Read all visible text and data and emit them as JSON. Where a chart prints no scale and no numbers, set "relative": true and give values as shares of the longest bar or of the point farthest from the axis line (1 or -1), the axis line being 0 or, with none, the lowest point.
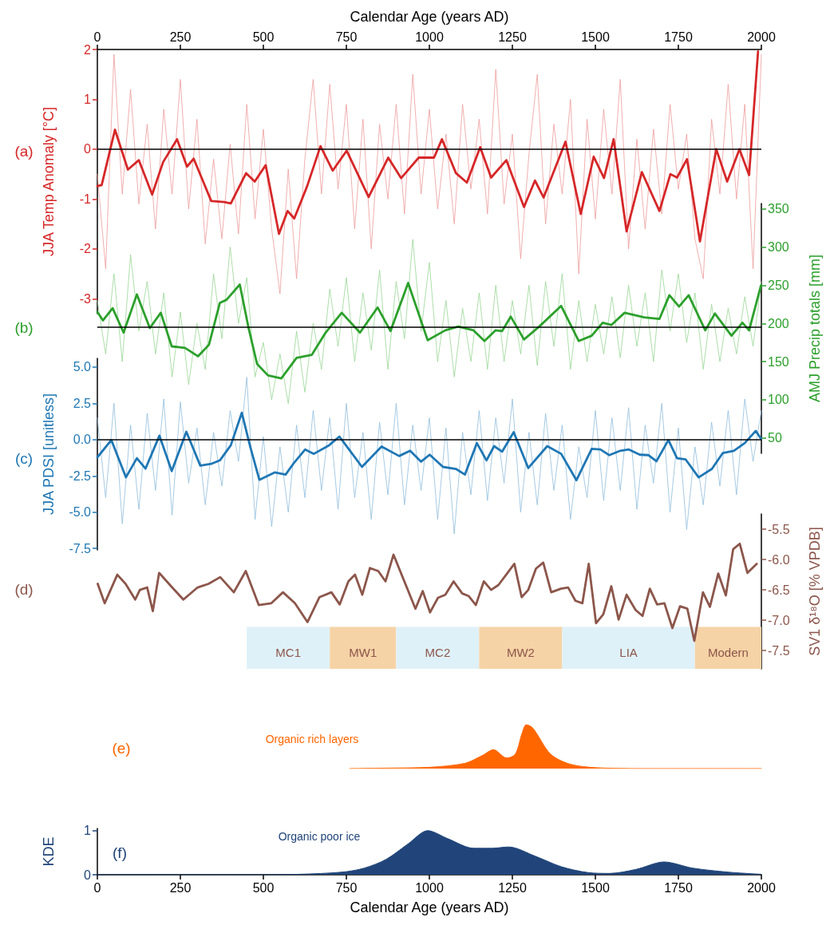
{
  "chart_data": [
    {
      "type": "line",
      "xlabel": "Calendar Age (years AD)",
      "xlim": [
        0,
        2000
      ],
      "xticks": [
        0,
        250,
        500,
        750,
        1000,
        1250,
        1500,
        1750,
        2000
      ],
      "ylabel": "JJA Temp Anomaly [°C]",
      "ylim": [
        -3.3,
        2
      ],
      "yticks": [
        2,
        1,
        0,
        -1,
        -2,
        -3
      ],
      "annotations": [
        "(a)"
      ],
      "ref_lines": [
        {
          "axis": "y",
          "value": 0,
          "color": "#000000"
        }
      ],
      "series": [
        {
          "color": "#ee9a9b",
          "x": [
            0,
            25,
            50,
            75,
            100,
            125,
            150,
            175,
            200,
            225,
            250,
            275,
            300,
            325,
            350,
            375,
            400,
            425,
            450,
            475,
            500,
            525,
            550,
            575,
            600,
            625,
            650,
            675,
            700,
            725,
            750,
            775,
            800,
            825,
            850,
            875,
            900,
            925,
            950,
            975,
            1000,
            1025,
            1050,
            1075,
            1100,
            1125,
            1150,
            1175,
            1200,
            1225,
            1250,
            1275,
            1300,
            1325,
            1350,
            1375,
            1400,
            1425,
            1450,
            1475,
            1500,
            1525,
            1550,
            1575,
            1600,
            1625,
            1650,
            1675,
            1700,
            1725,
            1750,
            1775,
            1800,
            1825,
            1850,
            1875,
            1900,
            1925,
            1950,
            1975,
            2000
          ],
          "values": [
            -0.5,
            -2.4,
            1.9,
            -0.9,
            1.2,
            -1.1,
            0.5,
            -1.6,
            0.8,
            -0.9,
            1.4,
            -1.2,
            0.6,
            -1.9,
            -0.2,
            -1.8,
            0.1,
            -1.7,
            0.9,
            -1.4,
            0.4,
            -1.6,
            -2.9,
            -0.4,
            -2.6,
            -0.2,
            1.4,
            -0.9,
            1.3,
            -0.8,
            0.9,
            -1.6,
            0.6,
            -2.0,
            0.5,
            -1.0,
            0.9,
            -1.3,
            1.5,
            -0.9,
            0.8,
            -1.2,
            0.3,
            -1.5,
            0.9,
            -0.8,
            0.6,
            -1.3,
            1.6,
            -1.1,
            0.3,
            -2.2,
            -0.1,
            1.5,
            -1.5,
            0.5,
            -0.9,
            1.0,
            -2.5,
            0.6,
            -1.4,
            0.8,
            -0.9,
            1.4,
            -2.0,
            0.2,
            -1.6,
            0.4,
            -1.3,
            0.9,
            -0.8,
            0.3,
            -1.8,
            -2.6,
            0.6,
            -0.9,
            1.3,
            -1.0,
            0.9,
            -2.4,
            1.9
          ]
        },
        {
          "color": "#d62728",
          "x": [
            0,
            13,
            53,
            92,
            125,
            165,
            198,
            240,
            270,
            290,
            343,
            382,
            402,
            448,
            474,
            507,
            547,
            573,
            593,
            632,
            672,
            709,
            751,
            817,
            876,
            915,
            968,
            1014,
            1038,
            1080,
            1113,
            1153,
            1186,
            1232,
            1285,
            1318,
            1344,
            1410,
            1456,
            1495,
            1526,
            1555,
            1594,
            1640,
            1693,
            1726,
            1746,
            1776,
            1815,
            1864,
            1897,
            1934,
            1963,
            1990
          ],
          "values": [
            -0.74,
            -0.72,
            0.39,
            -0.41,
            -0.22,
            -0.91,
            -0.26,
            0.2,
            -0.35,
            -0.19,
            -1.04,
            -1.06,
            -1.09,
            -0.48,
            -0.65,
            -0.32,
            -1.7,
            -1.24,
            -1.39,
            -0.74,
            0.06,
            -0.43,
            -0.03,
            -0.96,
            -0.17,
            -0.58,
            -0.17,
            -0.17,
            0.2,
            -0.48,
            -0.67,
            0.04,
            -0.57,
            -0.22,
            -1.16,
            -0.63,
            -0.97,
            0.15,
            -1.3,
            -0.15,
            -0.58,
            0.2,
            -1.65,
            -0.46,
            -1.24,
            -0.5,
            -0.57,
            -0.2,
            -1.85,
            0,
            -0.65,
            0,
            -0.52,
            1.96
          ]
        }
      ]
    },
    {
      "type": "line",
      "xlim": [
        0,
        2000
      ],
      "ylabel": "AMJ Precip totals [mm]",
      "ylim": [
        30,
        357
      ],
      "yticks": [
        350,
        300,
        250,
        200,
        150,
        100,
        50
      ],
      "tick_labels": "y",
      "annotations": [
        "(b)"
      ],
      "ref_lines": [
        {
          "axis": "y",
          "value": 195,
          "color": "#000000"
        }
      ],
      "series": [
        {
          "color": "#98d594",
          "x": [
            0,
            25,
            50,
            75,
            100,
            125,
            150,
            175,
            200,
            225,
            250,
            275,
            300,
            325,
            350,
            375,
            400,
            425,
            450,
            475,
            500,
            525,
            550,
            575,
            600,
            625,
            650,
            675,
            700,
            725,
            750,
            775,
            800,
            825,
            850,
            875,
            900,
            925,
            950,
            975,
            1000,
            1025,
            1050,
            1075,
            1100,
            1125,
            1150,
            1175,
            1200,
            1225,
            1250,
            1275,
            1300,
            1325,
            1350,
            1375,
            1400,
            1425,
            1450,
            1475,
            1500,
            1525,
            1550,
            1575,
            1600,
            1625,
            1650,
            1675,
            1700,
            1725,
            1750,
            1775,
            1800,
            1825,
            1850,
            1875,
            1900,
            1925,
            1950,
            1975,
            2000
          ],
          "values": [
            230,
            160,
            265,
            150,
            290,
            190,
            255,
            160,
            240,
            130,
            215,
            120,
            200,
            140,
            265,
            180,
            300,
            200,
            260,
            130,
            175,
            100,
            160,
            95,
            190,
            110,
            200,
            140,
            245,
            170,
            260,
            150,
            240,
            165,
            270,
            140,
            255,
            180,
            310,
            190,
            280,
            150,
            230,
            130,
            220,
            150,
            240,
            140,
            250,
            150,
            230,
            160,
            250,
            145,
            255,
            170,
            265,
            140,
            230,
            150,
            225,
            160,
            235,
            155,
            250,
            170,
            240,
            150,
            270,
            190,
            265,
            175,
            240,
            140,
            225,
            150,
            220,
            160,
            235,
            170,
            255
          ]
        },
        {
          "color": "#2ca02c",
          "x": [
            0,
            17,
            46,
            79,
            119,
            158,
            191,
            224,
            264,
            303,
            336,
            369,
            389,
            429,
            455,
            481,
            514,
            554,
            600,
            646,
            686,
            736,
            791,
            844,
            883,
            936,
            995,
            1048,
            1087,
            1133,
            1166,
            1199,
            1219,
            1245,
            1285,
            1331,
            1397,
            1450,
            1489,
            1522,
            1548,
            1588,
            1647,
            1693,
            1723,
            1752,
            1781,
            1831,
            1860,
            1910,
            1943,
            1963,
            1999
          ],
          "values": [
            215,
            204,
            220,
            188,
            238,
            194,
            214,
            170,
            168,
            157,
            172,
            227,
            231,
            251,
            195,
            147,
            132,
            128,
            155,
            159,
            187,
            214,
            188,
            221,
            190,
            253,
            178,
            191,
            196,
            191,
            177,
            191,
            190,
            209,
            179,
            196,
            223,
            177,
            184,
            201,
            198,
            214,
            208,
            206,
            237,
            222,
            237,
            191,
            213,
            184,
            201,
            191,
            250
          ]
        }
      ]
    },
    {
      "type": "line",
      "xlim": [
        0,
        2000
      ],
      "ylabel": "JJA PDSI [unitless]",
      "ylim": [
        -7.6,
        5.6
      ],
      "yticks": [
        {
          "value": 5,
          "label": "5.0"
        },
        {
          "value": 2.5,
          "label": "2.5"
        },
        {
          "value": 0,
          "label": "0.0"
        },
        {
          "value": -2.5,
          "label": "-2.5"
        },
        {
          "value": -5,
          "label": "-5.0"
        },
        {
          "value": -7.5,
          "label": "-7.5"
        }
      ],
      "tick_labels": "y",
      "annotations": [
        "(c)"
      ],
      "ref_lines": [
        {
          "axis": "y",
          "value": 0,
          "color": "#000000"
        }
      ],
      "series": [
        {
          "color": "#8fbcdc",
          "x": [
            0,
            25,
            50,
            75,
            100,
            125,
            150,
            175,
            200,
            225,
            250,
            275,
            300,
            325,
            350,
            375,
            400,
            425,
            450,
            475,
            500,
            525,
            550,
            575,
            600,
            625,
            650,
            675,
            700,
            725,
            750,
            775,
            800,
            825,
            850,
            875,
            900,
            925,
            950,
            975,
            1000,
            1025,
            1050,
            1075,
            1100,
            1125,
            1150,
            1175,
            1200,
            1225,
            1250,
            1275,
            1300,
            1325,
            1350,
            1375,
            1400,
            1425,
            1450,
            1475,
            1500,
            1525,
            1550,
            1575,
            1600,
            1625,
            1650,
            1675,
            1700,
            1725,
            1750,
            1775,
            1800,
            1825,
            1850,
            1875,
            1900,
            1925,
            1950,
            1975,
            2000
          ],
          "values": [
            1.5,
            -4.0,
            2.5,
            -5.8,
            1.0,
            -4.8,
            1.8,
            -3.5,
            2.8,
            -5.2,
            2.6,
            -3.0,
            0.8,
            -4.5,
            0.5,
            -3.2,
            2.0,
            -1.5,
            4.3,
            -5.5,
            0.2,
            -6.0,
            -0.5,
            -5.0,
            1.0,
            -4.0,
            2.0,
            -3.5,
            1.5,
            -4.8,
            2.5,
            -4.0,
            0.5,
            -5.5,
            1.2,
            -3.8,
            2.5,
            -4.5,
            1.0,
            -3.5,
            1.5,
            -5.5,
            0.8,
            -6.5,
            0.5,
            -3.8,
            2.0,
            -4.2,
            1.5,
            -3.0,
            2.8,
            -5.0,
            0.5,
            -4.5,
            1.8,
            -3.5,
            1.0,
            -5.5,
            -0.5,
            -4.0,
            2.0,
            -4.2,
            1.5,
            -3.5,
            2.2,
            -4.8,
            1.0,
            -3.0,
            2.5,
            -5.0,
            0.8,
            -6.2,
            -0.5,
            -4.5,
            1.2,
            -3.2,
            2.0,
            -3.8,
            2.8,
            -1.5,
            2.0
          ]
        },
        {
          "color": "#1f77b4",
          "x": [
            0,
            42,
            86,
            119,
            145,
            187,
            224,
            268,
            310,
            343,
            369,
            402,
            435,
            461,
            488,
            534,
            567,
            593,
            626,
            652,
            698,
            729,
            758,
            797,
            856,
            909,
            942,
            975,
            1001,
            1041,
            1080,
            1107,
            1143,
            1172,
            1195,
            1219,
            1254,
            1298,
            1355,
            1397,
            1443,
            1489,
            1515,
            1542,
            1575,
            1601,
            1634,
            1660,
            1684,
            1720,
            1746,
            1772,
            1811,
            1851,
            1884,
            1917,
            1950,
            1983,
            1999
          ],
          "values": [
            -1.22,
            -0.03,
            -2.6,
            -1.28,
            -2.0,
            0.27,
            -2.17,
            0.54,
            -1.79,
            -1.67,
            -1.43,
            -0.39,
            1.85,
            -0.54,
            -2.77,
            -2.26,
            -2.41,
            -1.58,
            -0.68,
            -0.98,
            -0.39,
            0.21,
            -0.68,
            -1.88,
            -0.48,
            -1.13,
            -0.77,
            -1.52,
            -1.04,
            -1.88,
            -2.02,
            -2.41,
            -0.24,
            -1.43,
            -0.45,
            -0.83,
            0.51,
            -1.96,
            -0.45,
            -0.98,
            -2.8,
            -0.63,
            -0.68,
            -1.07,
            -0.77,
            -0.68,
            -1.04,
            -1.07,
            -1.49,
            -0.03,
            -1.28,
            -1.37,
            -2.6,
            -2.02,
            -0.92,
            -0.77,
            -0.24,
            0.6,
            0.06
          ]
        }
      ]
    },
    {
      "type": "line",
      "xlim": [
        0,
        2000
      ],
      "ylabel": "SV1 δ¹⁸O [% VPDB]",
      "ylim": [
        -7.8,
        -5.25
      ],
      "yticks": [
        -5.5,
        {
          "value": -6,
          "label": "-6.0"
        },
        -6.5,
        {
          "value": -7,
          "label": "-7.0"
        },
        -7.5
      ],
      "tick_labels": "y",
      "annotations": [
        "(d)"
      ],
      "bands": [
        {
          "axis": "x",
          "from": 450,
          "to": 700,
          "label": "MC1",
          "color": "#dff1f8"
        },
        {
          "axis": "x",
          "from": 700,
          "to": 900,
          "label": "MW1",
          "color": "#f6d3a6"
        },
        {
          "axis": "x",
          "from": 900,
          "to": 1150,
          "label": "MC2",
          "color": "#dff1f8"
        },
        {
          "axis": "x",
          "from": 1150,
          "to": 1400,
          "label": "MW2",
          "color": "#f6d3a6"
        },
        {
          "axis": "x",
          "from": 1400,
          "to": 1800,
          "label": "LIA",
          "color": "#dff1f8"
        },
        {
          "axis": "x",
          "from": 1800,
          "to": 2000,
          "label": "Modern",
          "color": "#f6d3a6"
        }
      ],
      "series": [
        {
          "color": "#8c564b",
          "x": [
            1,
            22,
            60,
            85,
            114,
            128,
            150,
            167,
            186,
            222,
            259,
            302,
            335,
            370,
            411,
            447,
            486,
            524,
            559,
            595,
            633,
            669,
            705,
            730,
            756,
            776,
            798,
            821,
            846,
            868,
            892,
            958,
            980,
            1002,
            1026,
            1048,
            1073,
            1099,
            1118,
            1140,
            1164,
            1186,
            1208,
            1234,
            1256,
            1278,
            1298,
            1321,
            1343,
            1367,
            1396,
            1418,
            1440,
            1461,
            1480,
            1502,
            1524,
            1548,
            1570,
            1594,
            1621,
            1642,
            1664,
            1686,
            1708,
            1732,
            1755,
            1777,
            1798,
            1824,
            1845,
            1870,
            1893,
            1915,
            1935,
            1958,
            1986
          ],
          "values": [
            -6.4,
            -6.72,
            -6.25,
            -6.4,
            -6.66,
            -6.5,
            -6.46,
            -6.85,
            -6.22,
            -6.44,
            -6.66,
            -6.46,
            -6.4,
            -6.29,
            -6.54,
            -6.19,
            -6.75,
            -6.72,
            -6.54,
            -6.72,
            -7.03,
            -6.62,
            -6.54,
            -6.74,
            -6.36,
            -6.25,
            -6.58,
            -6.14,
            -6.19,
            -6.36,
            -5.92,
            -6.81,
            -6.52,
            -6.87,
            -6.63,
            -6.58,
            -6.36,
            -6.56,
            -6.6,
            -6.75,
            -6.36,
            -6.5,
            -6.42,
            -6.23,
            -6.07,
            -6.62,
            -6.5,
            -6.15,
            -6.05,
            -6.54,
            -6.48,
            -6.46,
            -6.68,
            -6.72,
            -6.07,
            -7.05,
            -6.9,
            -6.44,
            -6.99,
            -6.58,
            -6.83,
            -6.93,
            -6.48,
            -6.74,
            -6.72,
            -7.13,
            -6.77,
            -6.81,
            -7.34,
            -6.54,
            -6.78,
            -6.23,
            -6.59,
            -5.83,
            -5.74,
            -6.22,
            -6.07
          ]
        }
      ]
    },
    {
      "type": "area",
      "relative": true,
      "xlim": [
        0,
        2000
      ],
      "tick_labels": false,
      "annotations": [
        "(e)",
        "Organic rich layers"
      ],
      "series": [
        {
          "color": "#ff6600",
          "x": [
            760,
            870,
            1002,
            1107,
            1160,
            1193,
            1233,
            1259,
            1279,
            1292,
            1312,
            1365,
            1424,
            1503,
            1661,
            2000
          ],
          "values": [
            0,
            0.01,
            0.03,
            0.12,
            0.3,
            0.43,
            0.24,
            0.33,
            0.8,
            1,
            0.92,
            0.33,
            0.1,
            0.02,
            0,
            0
          ]
        }
      ]
    },
    {
      "type": "area",
      "xlabel": "Calendar Age (years AD)",
      "xlim": [
        0,
        2000
      ],
      "xticks": [
        0,
        250,
        500,
        750,
        1000,
        1250,
        1500,
        1750,
        2000
      ],
      "ylabel": "KDE",
      "ylim": [
        0,
        1.05
      ],
      "yticks": [
        0,
        1
      ],
      "annotations": [
        "(f)",
        "Organic poor ice"
      ],
      "series": [
        {
          "color": "#21457a",
          "x": [
            0,
            475,
            606,
            738,
            804,
            870,
            936,
            995,
            1055,
            1134,
            1187,
            1239,
            1319,
            1398,
            1477,
            1543,
            1622,
            1707,
            1793,
            1899,
            2000
          ],
          "values": [
            0,
            0,
            0.01,
            0.06,
            0.15,
            0.35,
            0.7,
            1,
            0.82,
            0.6,
            0.6,
            0.63,
            0.42,
            0.18,
            0.05,
            0.03,
            0.12,
            0.29,
            0.15,
            0.06,
            0.01
          ]
        }
      ]
    }
  ]
}
